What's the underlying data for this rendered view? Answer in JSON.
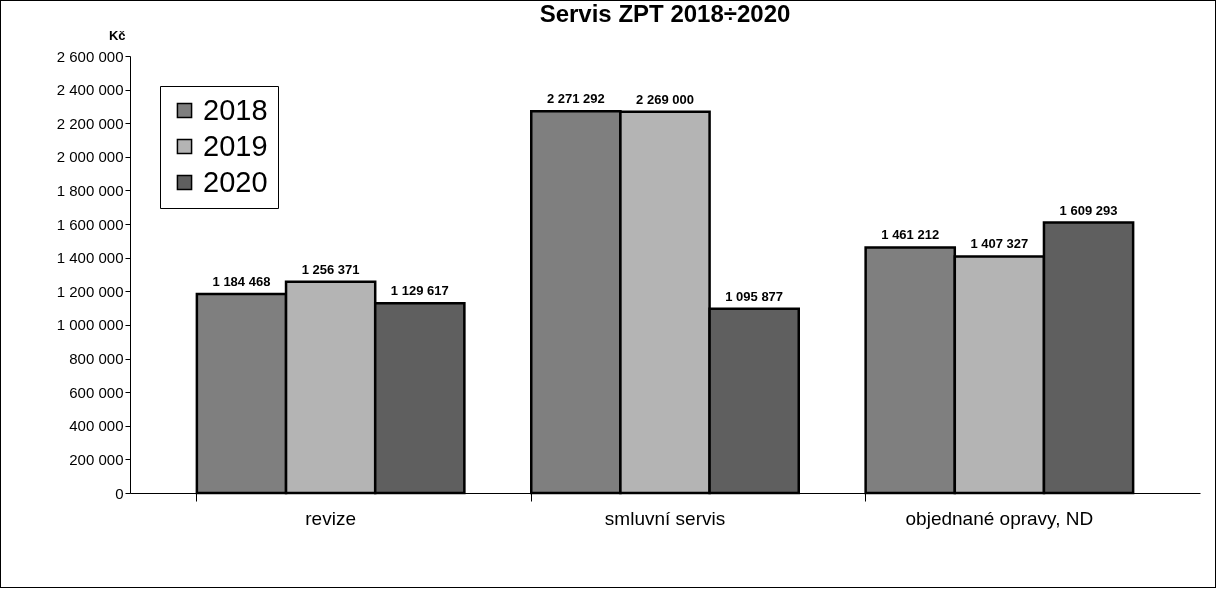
{
  "chart_data": {
    "type": "bar",
    "title": "Servis ZPT 2018÷2020",
    "ylabel": "Kč",
    "categories": [
      "revize",
      "smluvní servis",
      "objednané  opravy, ND"
    ],
    "series": [
      {
        "name": "2018",
        "color": "#7f7f7f",
        "values": [
          1184468,
          2271292,
          1461212
        ]
      },
      {
        "name": "2019",
        "color": "#b4b4b4",
        "values": [
          1256371,
          2269000,
          1407327
        ]
      },
      {
        "name": "2020",
        "color": "#5f5f5f",
        "values": [
          1129617,
          1095877,
          1609293
        ]
      }
    ],
    "ylim": [
      0,
      2600000
    ],
    "yticks": [
      0,
      200000,
      400000,
      600000,
      800000,
      1000000,
      1200000,
      1400000,
      1600000,
      1800000,
      2000000,
      2200000,
      2400000,
      2600000
    ],
    "data_labels": true,
    "legend": "top left",
    "grid": false
  }
}
